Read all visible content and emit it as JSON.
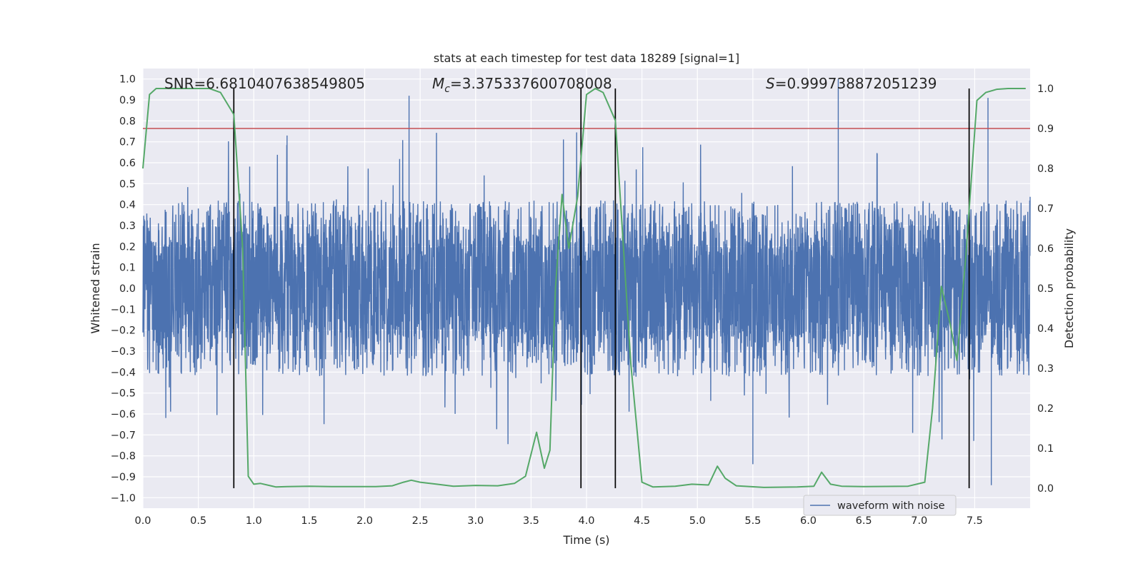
{
  "chart_data": {
    "type": "line",
    "title": "stats at each timestep for test data 18289 [signal=1]",
    "xlabel": "Time (s)",
    "ylabel_left": "Whitened strain",
    "ylabel_right": "Detection probability",
    "xlim": [
      0,
      8
    ],
    "ylim_left": [
      -1.05,
      1.05
    ],
    "ylim_right": [
      -0.05,
      1.05
    ],
    "x_ticks": [
      "0.0",
      "0.5",
      "1.0",
      "1.5",
      "2.0",
      "2.5",
      "3.0",
      "3.5",
      "4.0",
      "4.5",
      "5.0",
      "5.5",
      "6.0",
      "6.5",
      "7.0",
      "7.5"
    ],
    "y_ticks_left": [
      "1.0",
      "0.9",
      "0.8",
      "0.7",
      "0.6",
      "0.5",
      "0.4",
      "0.3",
      "0.2",
      "0.1",
      "0.0",
      "-0.1",
      "-0.2",
      "-0.3",
      "-0.4",
      "-0.5",
      "-0.6",
      "-0.7",
      "-0.8",
      "-0.9",
      "-1.0"
    ],
    "y_ticks_right": [
      "1.0",
      "0.9",
      "0.8",
      "0.7",
      "0.6",
      "0.5",
      "0.4",
      "0.3",
      "0.2",
      "0.1",
      "0.0"
    ],
    "grid": true,
    "legend_position": "lower-right",
    "annotations": {
      "snr": "SNR=6.6810407638549805",
      "mc_symbol": "M",
      "mc_sub": "c",
      "mc_value": "=3.375337600708008",
      "s_symbol": "S",
      "s_value": "=0.999738872051239"
    },
    "series": [
      {
        "name": "waveform with noise",
        "axis": "left",
        "color": "#4c72b0",
        "samples": 4096,
        "core_amplitude": 0.22,
        "envelope_min": -0.38,
        "envelope_max": 0.42,
        "notable_peaks": [
          {
            "x": 2.4,
            "y": 0.92
          },
          {
            "x": 6.27,
            "y": 1.0
          },
          {
            "x": 7.65,
            "y": -0.94
          },
          {
            "x": 7.62,
            "y": 0.91
          },
          {
            "x": 1.3,
            "y": 0.73
          },
          {
            "x": 5.5,
            "y": -0.84
          }
        ]
      },
      {
        "name": "detection probability",
        "axis": "right",
        "color": "#55a868",
        "x": [
          0.0,
          0.06,
          0.12,
          0.2,
          0.3,
          0.4,
          0.5,
          0.6,
          0.7,
          0.82,
          0.9,
          0.95,
          1.0,
          1.06,
          1.2,
          1.3,
          1.5,
          1.7,
          1.9,
          2.1,
          2.25,
          2.35,
          2.42,
          2.5,
          2.65,
          2.8,
          3.0,
          3.2,
          3.35,
          3.45,
          3.55,
          3.62,
          3.67,
          3.72,
          3.78,
          3.84,
          3.92,
          4.0,
          4.08,
          4.15,
          4.26,
          4.4,
          4.5,
          4.6,
          4.8,
          4.95,
          5.1,
          5.18,
          5.25,
          5.35,
          5.6,
          5.9,
          6.05,
          6.12,
          6.2,
          6.3,
          6.5,
          6.9,
          7.05,
          7.12,
          7.2,
          7.28,
          7.34,
          7.42,
          7.52,
          7.6,
          7.7,
          7.8,
          7.96
        ],
        "y": [
          0.8,
          0.985,
          1.0,
          1.0,
          1.0,
          1.0,
          1.0,
          1.0,
          0.99,
          0.935,
          0.6,
          0.03,
          0.01,
          0.012,
          0.003,
          0.004,
          0.005,
          0.004,
          0.004,
          0.004,
          0.006,
          0.015,
          0.02,
          0.015,
          0.01,
          0.005,
          0.007,
          0.006,
          0.012,
          0.03,
          0.14,
          0.05,
          0.095,
          0.5,
          0.735,
          0.6,
          0.73,
          0.985,
          1.0,
          0.99,
          0.92,
          0.31,
          0.015,
          0.003,
          0.005,
          0.01,
          0.008,
          0.055,
          0.025,
          0.006,
          0.002,
          0.003,
          0.005,
          0.04,
          0.01,
          0.005,
          0.004,
          0.005,
          0.015,
          0.2,
          0.505,
          0.41,
          0.32,
          0.58,
          0.97,
          0.99,
          0.998,
          1.0,
          1.0
        ]
      }
    ],
    "threshold": {
      "axis": "right",
      "y": 0.9,
      "color": "#c44e52"
    },
    "event_lines": {
      "color": "#000000",
      "x": [
        0.82,
        3.95,
        4.26,
        7.45
      ],
      "y_range_right": [
        0.0,
        1.0
      ]
    }
  }
}
